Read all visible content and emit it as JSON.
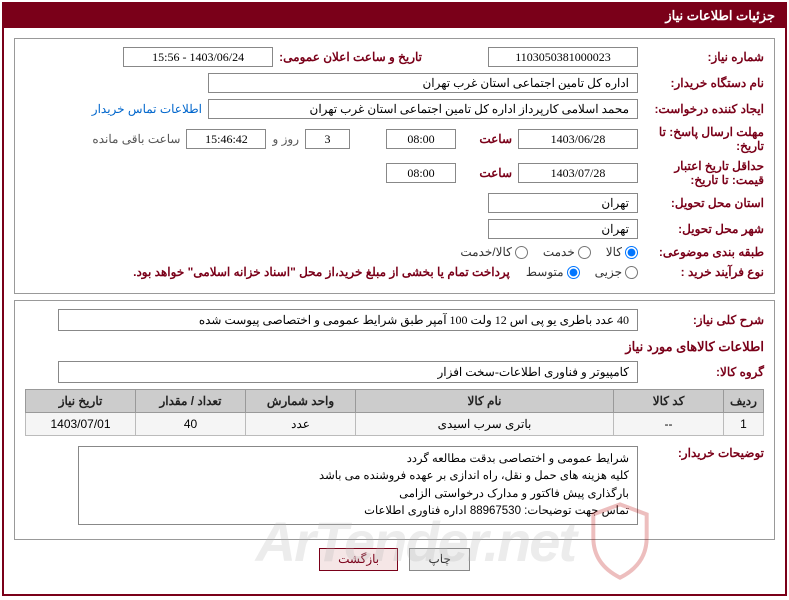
{
  "header": "جزئیات اطلاعات نیاز",
  "f": {
    "need_no_label": "شماره نیاز:",
    "need_no": "1103050381000023",
    "announce_label": "تاریخ و ساعت اعلان عمومی:",
    "announce_val": "1403/06/24 - 15:56",
    "buyer_org_label": "نام دستگاه خریدار:",
    "buyer_org": "اداره کل تامین اجتماعی استان غرب تهران",
    "requester_label": "ایجاد کننده درخواست:",
    "requester": "محمد اسلامی کارپرداز اداره کل تامین اجتماعی استان غرب تهران",
    "contact_link": "اطلاعات تماس خریدار",
    "deadline_label": "مهلت ارسال پاسخ: تا تاریخ:",
    "deadline_date": "1403/06/28",
    "saat": "ساعت",
    "deadline_time": "08:00",
    "days_val": "3",
    "rooz_va": "روز و",
    "countdown": "15:46:42",
    "remaining": "ساعت باقی مانده",
    "validity_label": "حداقل تاریخ اعتبار قیمت: تا تاریخ:",
    "validity_date": "1403/07/28",
    "validity_time": "08:00",
    "province_label": "استان محل تحویل:",
    "province": "تهران",
    "city_label": "شهر محل تحویل:",
    "city": "تهران",
    "category_label": "طبقه بندی موضوعی:",
    "cat_kala": "کالا",
    "cat_khadamat": "خدمت",
    "cat_both": "کالا/خدمت",
    "process_label": "نوع فرآیند خرید :",
    "proc_partial": "جزیی",
    "proc_medium": "متوسط",
    "process_note": "پرداخت تمام یا بخشی از مبلغ خرید،از محل \"اسناد خزانه اسلامی\" خواهد بود.",
    "overall_label": "شرح کلی نیاز:",
    "overall_desc": "40 عدد باطری یو پی اس 12 ولت 100 آمپر طبق شرایط عمومی و اختصاصی پیوست شده",
    "items_title": "اطلاعات کالاهای مورد نیاز",
    "group_label": "گروه کالا:",
    "group_val": "کامپیوتر و فناوری اطلاعات-سخت افزار",
    "buyer_notes_label": "توضیحات خریدار:",
    "notes_l1": "شرایط عمومی و اختصاصی بدقت مطالعه گردد",
    "notes_l2": "کلیه هزینه های حمل و نقل، راه اندازی بر عهده فروشنده می باشد",
    "notes_l3": "بارگذاری پیش فاکتور و مدارک درخواستی الزامی",
    "notes_l4": "تماس جهت توضیحات: 88967530 اداره فناوری اطلاعات",
    "btn_print": "چاپ",
    "btn_back": "بازگشت"
  },
  "table": {
    "h_row": "ردیف",
    "h_code": "کد کالا",
    "h_name": "نام کالا",
    "h_unit": "واحد شمارش",
    "h_qty": "تعداد / مقدار",
    "h_date": "تاریخ نیاز",
    "r_row": "1",
    "r_code": "--",
    "r_name": "باتری سرب اسیدی",
    "r_unit": "عدد",
    "r_qty": "40",
    "r_date": "1403/07/01"
  },
  "widths": {
    "col_row": "40px",
    "col_code": "110px",
    "col_name": "auto",
    "col_unit": "110px",
    "col_qty": "110px",
    "col_date": "110px"
  },
  "watermark": "ArTender.net"
}
